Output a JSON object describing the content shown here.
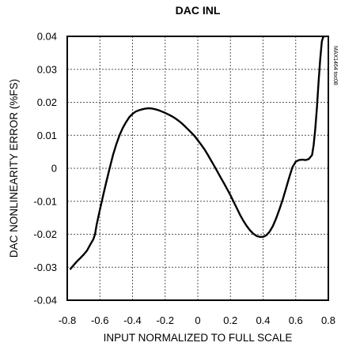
{
  "chart_data": {
    "type": "line",
    "title": "DAC INL",
    "xlabel": "INPUT NORMALIZED TO FULL SCALE",
    "ylabel": "DAC NONLINEARITY ERROR (%FS)",
    "part_label": "MAX1464 toc08",
    "xlim": [
      -0.8,
      0.8
    ],
    "ylim": [
      -0.04,
      0.04
    ],
    "grid": true,
    "x_ticks": [
      -0.8,
      -0.6,
      -0.4,
      -0.2,
      0,
      0.2,
      0.4,
      0.6,
      0.8
    ],
    "x_tick_labels": [
      "-0.8",
      "-0.6",
      "-0.4",
      "-0.2",
      "0",
      "0.2",
      "0.4",
      "0.6",
      "0.8"
    ],
    "y_ticks": [
      -0.04,
      -0.03,
      -0.02,
      -0.01,
      0,
      0.01,
      0.02,
      0.03,
      0.04
    ],
    "y_tick_labels": [
      "-0.04",
      "-0.03",
      "-0.02",
      "-0.01",
      "0",
      "0.01",
      "0.02",
      "0.03",
      "0.04"
    ],
    "series": [
      {
        "color": "#000000",
        "x": [
          -0.78,
          -0.76,
          -0.74,
          -0.72,
          -0.7,
          -0.68,
          -0.66,
          -0.64,
          -0.63,
          -0.62,
          -0.6,
          -0.58,
          -0.56,
          -0.54,
          -0.52,
          -0.5,
          -0.48,
          -0.46,
          -0.44,
          -0.42,
          -0.4,
          -0.38,
          -0.36,
          -0.34,
          -0.32,
          -0.3,
          -0.28,
          -0.26,
          -0.24,
          -0.22,
          -0.2,
          -0.18,
          -0.16,
          -0.14,
          -0.12,
          -0.1,
          -0.08,
          -0.06,
          -0.04,
          -0.02,
          0.0,
          0.02,
          0.04,
          0.06,
          0.08,
          0.1,
          0.12,
          0.14,
          0.16,
          0.18,
          0.2,
          0.22,
          0.24,
          0.26,
          0.28,
          0.3,
          0.32,
          0.34,
          0.36,
          0.38,
          0.4,
          0.42,
          0.44,
          0.46,
          0.48,
          0.5,
          0.52,
          0.54,
          0.56,
          0.58,
          0.6,
          0.62,
          0.64,
          0.66,
          0.68,
          0.7,
          0.71,
          0.72,
          0.73,
          0.74,
          0.75,
          0.76,
          0.77,
          0.78
        ],
        "y": [
          -0.0305,
          -0.0293,
          -0.0282,
          -0.0272,
          -0.0262,
          -0.025,
          -0.0232,
          -0.0215,
          -0.02,
          -0.0172,
          -0.0125,
          -0.0082,
          -0.004,
          0.0,
          0.004,
          0.0072,
          0.01,
          0.0122,
          0.014,
          0.0155,
          0.0165,
          0.0172,
          0.0176,
          0.0179,
          0.0181,
          0.0182,
          0.0181,
          0.0179,
          0.0176,
          0.0172,
          0.0168,
          0.0163,
          0.0158,
          0.0152,
          0.0145,
          0.0137,
          0.0128,
          0.0118,
          0.0108,
          0.0098,
          0.0085,
          0.0072,
          0.0058,
          0.0042,
          0.0025,
          0.0008,
          -0.001,
          -0.0028,
          -0.0045,
          -0.0063,
          -0.0082,
          -0.0102,
          -0.0122,
          -0.0142,
          -0.016,
          -0.0175,
          -0.0188,
          -0.0198,
          -0.0205,
          -0.0208,
          -0.0208,
          -0.0203,
          -0.0192,
          -0.0175,
          -0.0152,
          -0.0125,
          -0.0095,
          -0.0062,
          -0.0028,
          0.0003,
          0.002,
          0.0025,
          0.0026,
          0.0025,
          0.0028,
          0.004,
          0.007,
          0.012,
          0.0185,
          0.026,
          0.033,
          0.0385,
          0.04,
          0.04
        ]
      }
    ]
  }
}
